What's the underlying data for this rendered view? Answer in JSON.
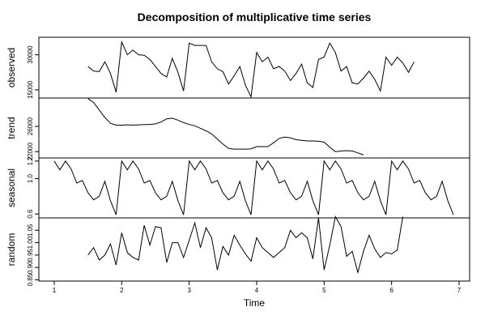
{
  "chart_data": {
    "type": "line",
    "title": "Decomposition of multiplicative time series",
    "xlabel": "Time",
    "xlim": [
      1,
      7
    ],
    "x_ticks": [
      "1",
      "2",
      "3",
      "4",
      "5",
      "6",
      "7"
    ],
    "panels": [
      {
        "name": "observed",
        "ylim": [
          11500,
          37500
        ],
        "ticks": [
          "15000",
          "30000"
        ],
        "start": 1.5,
        "step": 0.08333,
        "values": [
          25000,
          23000,
          22800,
          27000,
          22000,
          14000,
          35500,
          30000,
          32000,
          30000,
          29800,
          28000,
          25000,
          22000,
          20500,
          28500,
          22500,
          14500,
          35000,
          34000,
          34000,
          34000,
          27000,
          24000,
          22800,
          17500,
          21000,
          25000,
          17000,
          12000,
          31000,
          27000,
          29000,
          24000,
          25000,
          23000,
          19000,
          22000,
          26000,
          18000,
          16000,
          28000,
          29000,
          35000,
          31000,
          23000,
          25000,
          18000,
          17500,
          20000,
          23000,
          19500,
          14500,
          29000,
          25500,
          29000,
          26500,
          22500,
          27000
        ]
      },
      {
        "name": "trend",
        "ylim": [
          21000,
          30500
        ],
        "ticks": [
          "22000",
          "26000"
        ],
        "start": 1.5,
        "step": 0.08333,
        "values": [
          30400,
          29800,
          28600,
          27400,
          26500,
          26200,
          26200,
          26250,
          26200,
          26250,
          26300,
          26300,
          26400,
          26700,
          27200,
          27300,
          27000,
          26600,
          26300,
          26100,
          25700,
          25300,
          24800,
          24000,
          23200,
          22500,
          22400,
          22400,
          22400,
          22450,
          22800,
          22800,
          22800,
          23400,
          24100,
          24300,
          24200,
          23900,
          23800,
          23700,
          23700,
          23650,
          23500,
          22700,
          22000,
          22100,
          22150,
          22100,
          21800,
          21500
        ]
      },
      {
        "name": "seasonal",
        "ylim": [
          0.555,
          1.235
        ],
        "ticks": [
          "0.6",
          "1.0",
          "1.2"
        ],
        "start": 1.0,
        "step": 0.08333,
        "values": [
          1.2,
          1.1,
          1.2,
          1.11,
          0.95,
          0.98,
          0.84,
          0.76,
          0.8,
          0.97,
          0.75,
          0.59,
          1.2,
          1.1,
          1.2,
          1.11,
          0.95,
          0.98,
          0.84,
          0.76,
          0.8,
          0.97,
          0.75,
          0.59,
          1.2,
          1.1,
          1.2,
          1.11,
          0.95,
          0.98,
          0.84,
          0.76,
          0.8,
          0.97,
          0.75,
          0.59,
          1.2,
          1.1,
          1.2,
          1.11,
          0.95,
          0.98,
          0.84,
          0.76,
          0.8,
          0.97,
          0.75,
          0.59,
          1.2,
          1.1,
          1.2,
          1.11,
          0.95,
          0.98,
          0.84,
          0.76,
          0.8,
          0.97,
          0.75,
          0.59,
          1.2,
          1.1,
          1.2,
          1.11,
          0.95,
          0.98,
          0.84,
          0.76,
          0.8,
          0.97,
          0.75,
          0.59
        ]
      },
      {
        "name": "random",
        "ylim": [
          0.845,
          1.1
        ],
        "ticks": [
          "0.85",
          "0.90",
          "0.95",
          "1.00",
          "1.05"
        ],
        "start": 1.5,
        "step": 0.08333,
        "values": [
          0.95,
          0.98,
          0.93,
          0.95,
          0.995,
          0.91,
          1.04,
          0.96,
          0.94,
          0.93,
          1.07,
          0.99,
          1.065,
          1.06,
          0.92,
          1.0,
          1.0,
          0.94,
          1.01,
          1.08,
          0.98,
          1.06,
          1.02,
          0.89,
          0.985,
          0.95,
          1.03,
          0.99,
          0.955,
          0.925,
          1.02,
          0.98,
          0.96,
          0.94,
          0.96,
          0.98,
          1.05,
          1.02,
          1.04,
          1.02,
          0.935,
          1.1,
          0.89,
          0.99,
          1.105,
          1.065,
          0.945,
          0.965,
          0.88,
          0.965,
          1.03,
          0.975,
          0.94,
          0.96,
          0.955,
          0.97,
          1.105
        ]
      }
    ]
  }
}
